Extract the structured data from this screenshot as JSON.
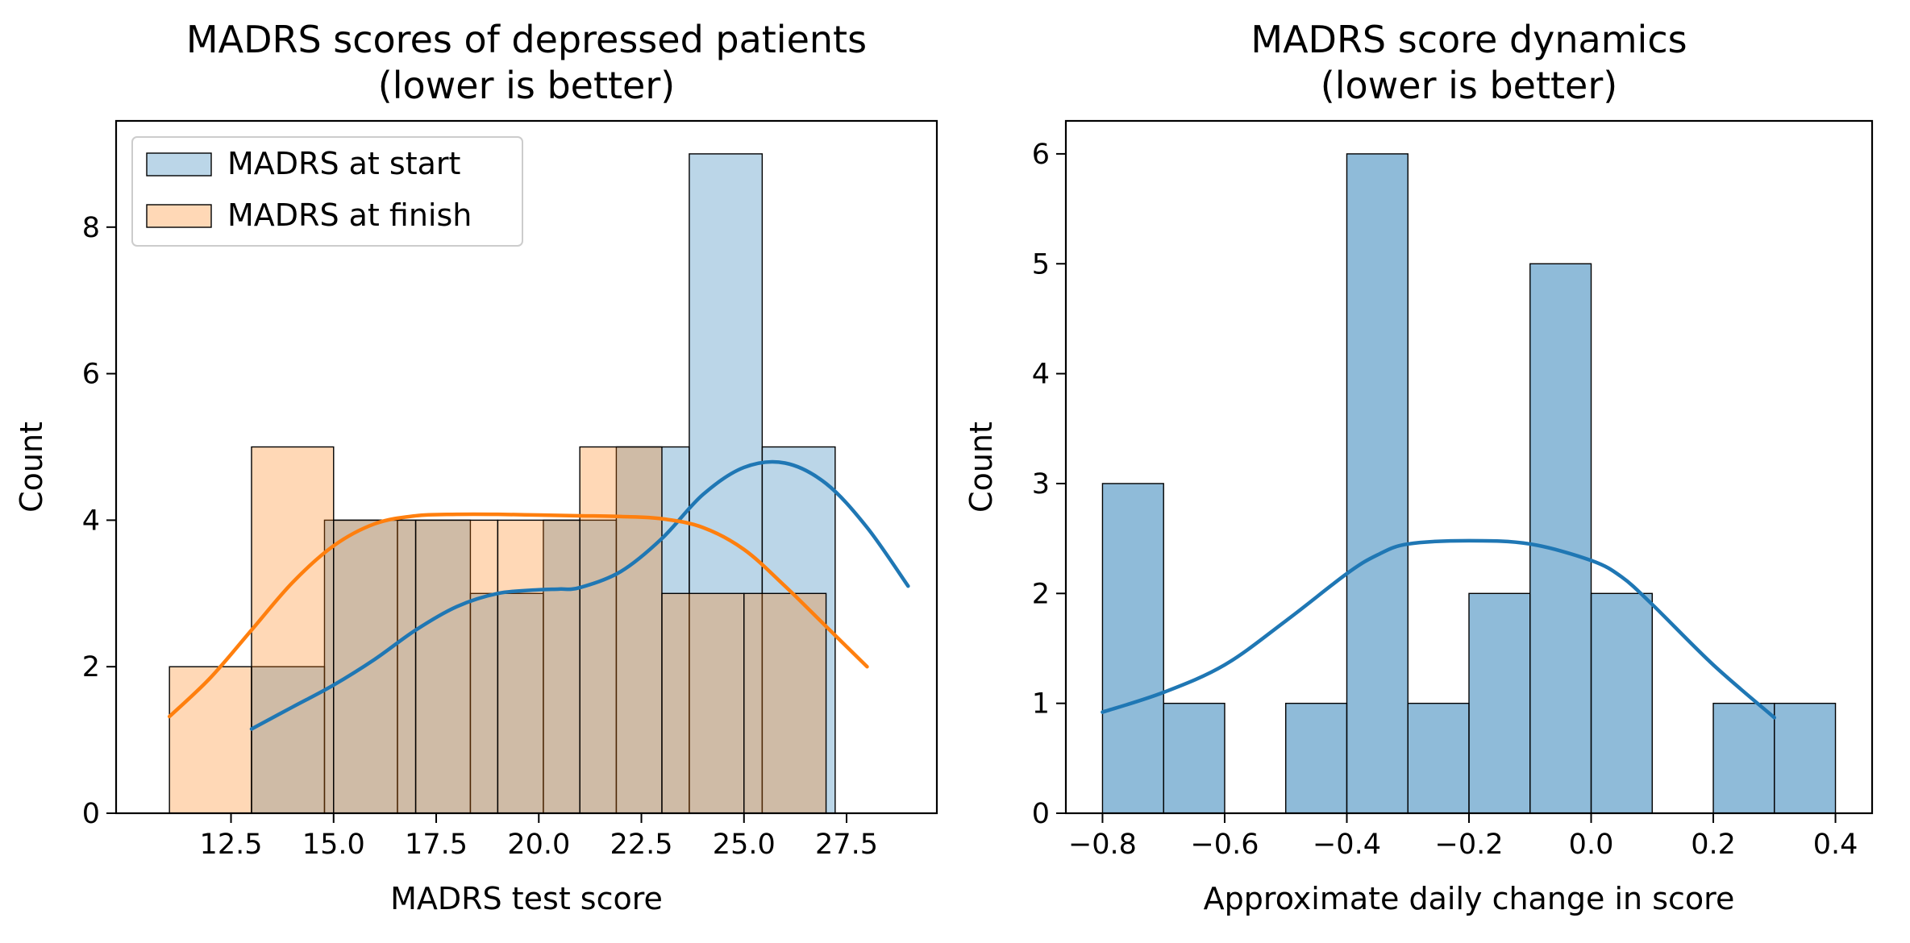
{
  "chart_data": [
    {
      "type": "histogram",
      "title": [
        "MADRS scores of depressed patients",
        "(lower is better)"
      ],
      "xlabel": "MADRS test score",
      "ylabel": "Count",
      "xlim": [
        9.7,
        29.7
      ],
      "ylim": [
        0,
        9.45
      ],
      "xticks": [
        12.5,
        15.0,
        17.5,
        20.0,
        22.5,
        25.0,
        27.5
      ],
      "xtick_labels": [
        "12.5",
        "15.0",
        "17.5",
        "20.0",
        "22.5",
        "25.0",
        "27.5"
      ],
      "yticks": [
        0,
        2,
        4,
        6,
        8
      ],
      "ytick_labels": [
        "0",
        "2",
        "4",
        "6",
        "8"
      ],
      "legend": {
        "position": "upper left"
      },
      "series": [
        {
          "name": "MADRS at start",
          "color": "#1f77b4",
          "bin_edges": [
            13.0,
            14.778,
            16.556,
            18.333,
            20.111,
            21.889,
            23.667,
            25.444,
            27.222,
            29.0
          ],
          "counts": [
            2,
            4,
            4,
            3,
            4,
            5,
            9,
            5,
            0
          ],
          "kde": {
            "x": [
              13.0,
              14.0,
              15.0,
              16.0,
              17.0,
              18.0,
              19.0,
              20.0,
              20.5,
              21.0,
              22.0,
              23.0,
              24.0,
              25.0,
              26.0,
              27.0,
              28.0,
              29.0
            ],
            "y": [
              1.15,
              1.45,
              1.75,
              2.1,
              2.5,
              2.82,
              3.0,
              3.05,
              3.06,
              3.08,
              3.3,
              3.75,
              4.35,
              4.72,
              4.78,
              4.5,
              3.9,
              3.1
            ]
          }
        },
        {
          "name": "MADRS at finish",
          "color": "#ff7f0e",
          "bin_edges": [
            11.0,
            13.0,
            15.0,
            17.0,
            19.0,
            21.0,
            23.0,
            25.0,
            27.0
          ],
          "counts": [
            2,
            5,
            4,
            4,
            4,
            5,
            3,
            3
          ],
          "kde": {
            "x": [
              11.0,
              12.0,
              13.0,
              14.0,
              15.0,
              16.0,
              17.0,
              18.0,
              19.0,
              20.0,
              21.0,
              22.0,
              23.0,
              24.0,
              25.0,
              26.0,
              27.0,
              28.0
            ],
            "y": [
              1.32,
              1.85,
              2.5,
              3.15,
              3.65,
              3.95,
              4.06,
              4.08,
              4.08,
              4.07,
              4.06,
              4.05,
              4.02,
              3.9,
              3.6,
              3.1,
              2.55,
              2.0
            ]
          }
        }
      ]
    },
    {
      "type": "histogram",
      "title": [
        "MADRS score dynamics",
        "(lower is better)"
      ],
      "xlabel": "Approximate daily change in score",
      "ylabel": "Count",
      "xlim": [
        -0.86,
        0.46
      ],
      "ylim": [
        0,
        6.3
      ],
      "xticks": [
        -0.8,
        -0.6,
        -0.4,
        -0.2,
        0.0,
        0.2,
        0.4
      ],
      "xtick_labels": [
        "−0.8",
        "−0.6",
        "−0.4",
        "−0.2",
        "0.0",
        "0.2",
        "0.4"
      ],
      "yticks": [
        0,
        1,
        2,
        3,
        4,
        5,
        6
      ],
      "ytick_labels": [
        "0",
        "1",
        "2",
        "3",
        "4",
        "5",
        "6"
      ],
      "series": [
        {
          "color": "#1f77b4",
          "bin_edges": [
            -0.8,
            -0.7,
            -0.6,
            -0.5,
            -0.4,
            -0.3,
            -0.2,
            -0.1,
            0.0,
            0.1,
            0.2,
            0.3,
            0.4
          ],
          "counts": [
            3,
            1,
            0,
            1,
            6,
            1,
            2,
            5,
            2,
            0,
            1,
            1
          ],
          "kde": {
            "x": [
              -0.8,
              -0.7,
              -0.6,
              -0.5,
              -0.4,
              -0.35,
              -0.3,
              -0.2,
              -0.1,
              0.0,
              0.05,
              0.1,
              0.2,
              0.3
            ],
            "y": [
              0.92,
              1.1,
              1.35,
              1.75,
              2.18,
              2.35,
              2.45,
              2.48,
              2.45,
              2.3,
              2.15,
              1.9,
              1.35,
              0.87
            ]
          }
        }
      ]
    }
  ]
}
